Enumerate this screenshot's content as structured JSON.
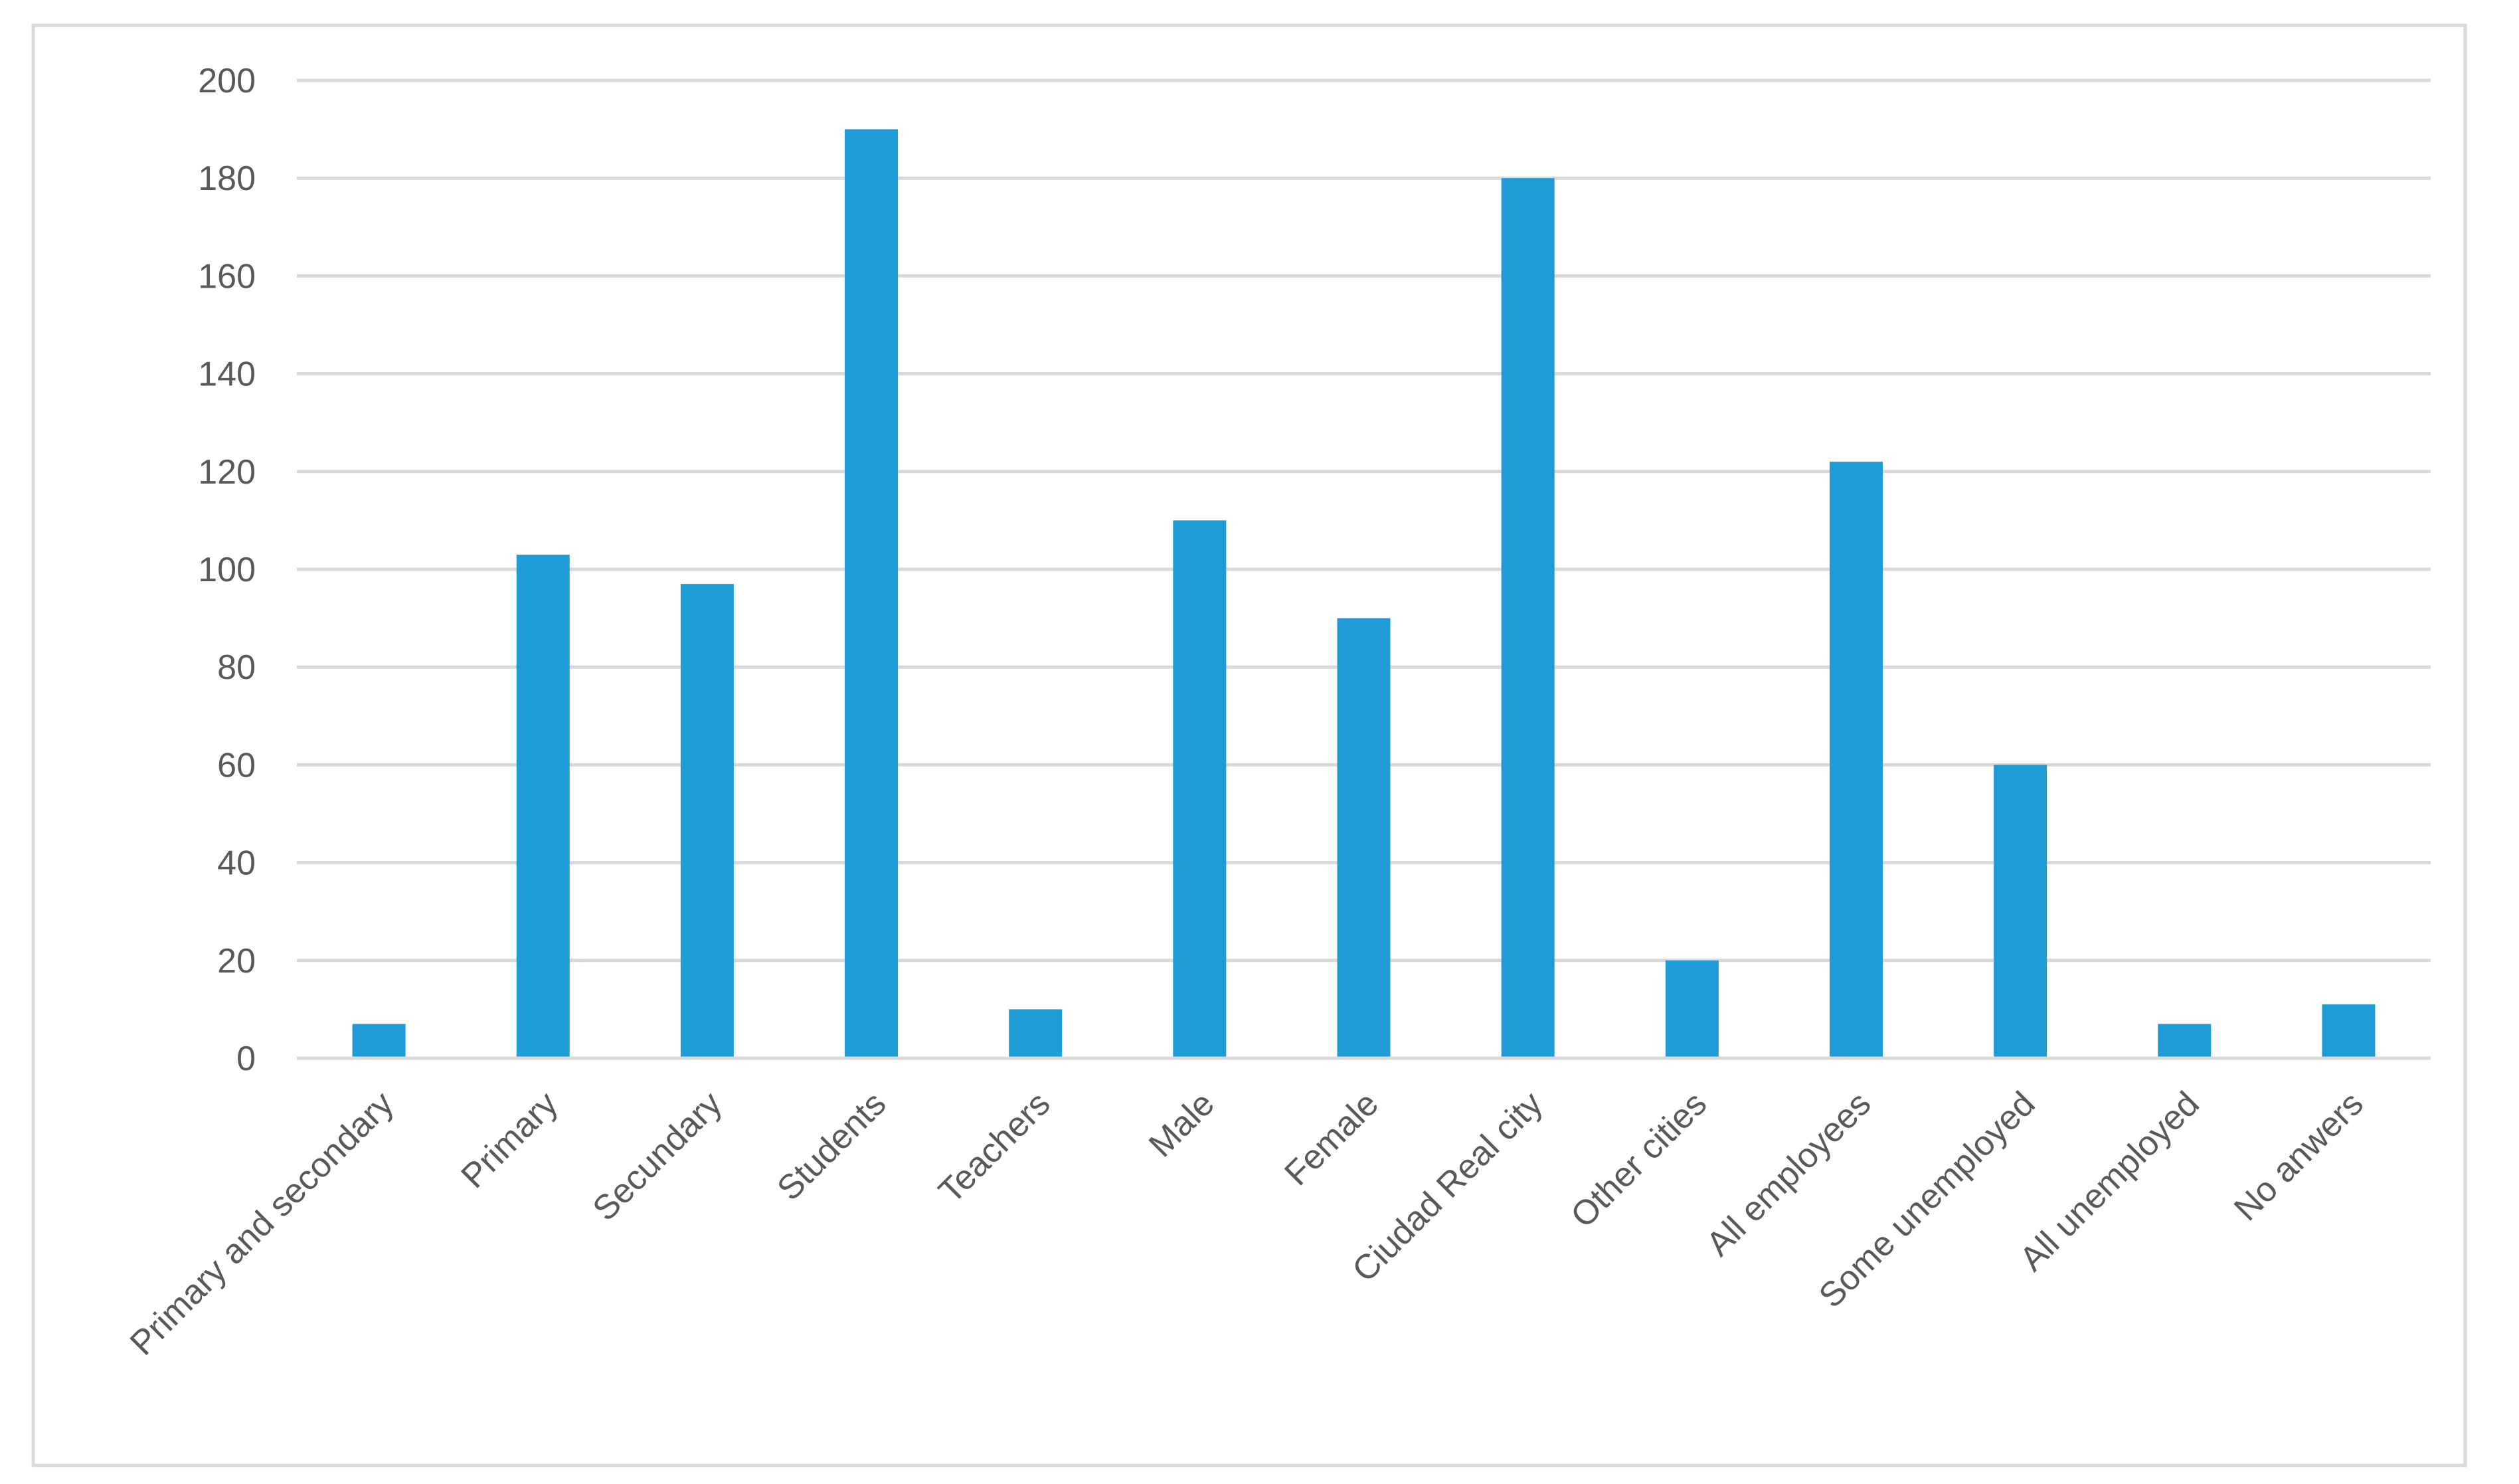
{
  "chart_data": {
    "type": "bar",
    "title": "",
    "xlabel": "",
    "ylabel": "",
    "categories": [
      "Primary and secondary",
      "Primary",
      "Secundary",
      "Students",
      "Teachers",
      "Male",
      "Female",
      "Ciudad Real city",
      "Other cities",
      "All employees",
      "Some unemployed",
      "All unemployed",
      "No anwers"
    ],
    "values": [
      7,
      103,
      97,
      190,
      10,
      110,
      90,
      180,
      20,
      122,
      60,
      7,
      11
    ],
    "ylim": [
      0,
      200
    ],
    "yticks": [
      0,
      20,
      40,
      60,
      80,
      100,
      120,
      140,
      160,
      180,
      200
    ],
    "ytick_labels": [
      "0",
      "20",
      "40",
      "60",
      "80",
      "100",
      "120",
      "140",
      "160",
      "180",
      "200"
    ],
    "grid": true,
    "legend": "none",
    "bar_color": "#1f9bd7",
    "grid_color": "#d9d9d9",
    "text_color": "#595959",
    "frame_color": "#d9d9d9"
  }
}
